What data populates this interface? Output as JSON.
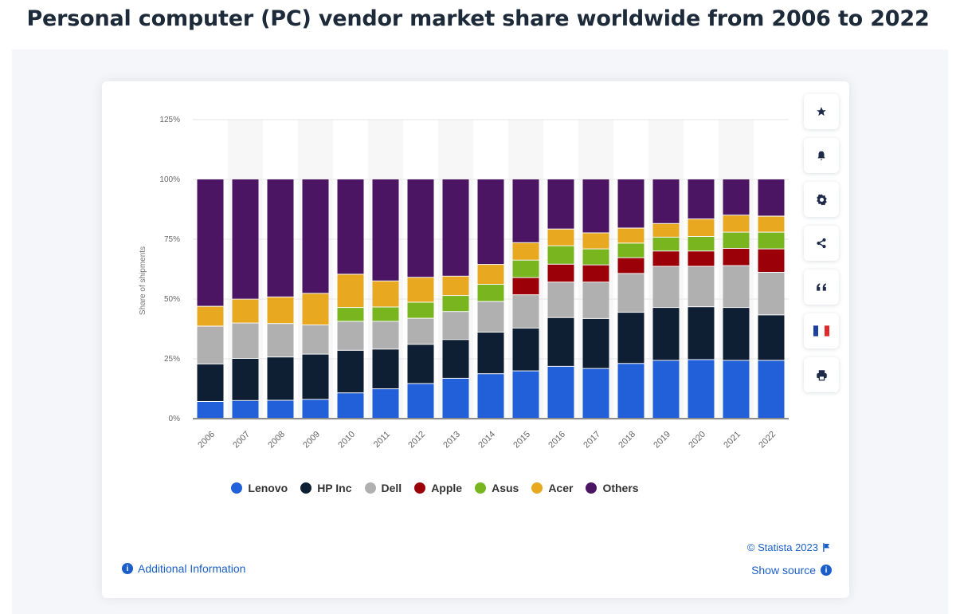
{
  "page": {
    "title": "Personal computer (PC) vendor market share worldwide from 2006 to 2022"
  },
  "side_toolbar": [
    {
      "name": "favorite-button",
      "icon": "star-icon"
    },
    {
      "name": "notification-button",
      "icon": "bell-icon"
    },
    {
      "name": "settings-button",
      "icon": "gear-icon"
    },
    {
      "name": "share-button",
      "icon": "share-icon"
    },
    {
      "name": "cite-button",
      "icon": "quote-icon"
    },
    {
      "name": "language-button",
      "icon": "french-flag-icon"
    },
    {
      "name": "print-button",
      "icon": "printer-icon"
    }
  ],
  "footer": {
    "additional_info": "Additional Information",
    "copyright": "© Statista 2023",
    "show_source": "Show source",
    "info_glyph": "i"
  },
  "colors": {
    "Lenovo": "#2160d8",
    "HP Inc": "#0f1f33",
    "Dell": "#b0b0b0",
    "Apple": "#9b0008",
    "Asus": "#78b51e",
    "Acer": "#e8a820",
    "Others": "#4b1563",
    "link": "#1a5fc9"
  },
  "chart_data": {
    "type": "bar",
    "stacked": true,
    "title": "Personal computer (PC) vendor market share worldwide from 2006 to 2022",
    "xlabel": "",
    "ylabel": "Share of shipments",
    "ylim": [
      0,
      125
    ],
    "yticks": [
      "0%",
      "25%",
      "50%",
      "75%",
      "100%",
      "125%"
    ],
    "ytick_values": [
      0,
      25,
      50,
      75,
      100,
      125
    ],
    "grid": true,
    "legend_position": "bottom",
    "categories": [
      "2006",
      "2007",
      "2008",
      "2009",
      "2010",
      "2011",
      "2012",
      "2013",
      "2014",
      "2015",
      "2016",
      "2017",
      "2018",
      "2019",
      "2020",
      "2021",
      "2022"
    ],
    "series": [
      {
        "name": "Lenovo",
        "values": [
          7.0,
          7.4,
          7.5,
          7.9,
          10.6,
          12.3,
          14.5,
          16.7,
          18.6,
          19.8,
          21.7,
          20.8,
          22.9,
          24.2,
          24.5,
          24.2,
          24.2
        ]
      },
      {
        "name": "HP Inc",
        "values": [
          15.7,
          17.6,
          18.1,
          18.9,
          17.8,
          16.6,
          16.4,
          16.2,
          17.4,
          17.9,
          20.4,
          20.9,
          21.4,
          22.1,
          22.1,
          22.1,
          19.0
        ]
      },
      {
        "name": "Dell",
        "values": [
          15.8,
          14.8,
          14.0,
          12.2,
          12.1,
          11.6,
          10.9,
          11.7,
          12.8,
          13.9,
          14.8,
          15.2,
          16.2,
          17.2,
          16.9,
          17.5,
          17.8
        ]
      },
      {
        "name": "Apple",
        "values": [
          0,
          0,
          0,
          0,
          0,
          0,
          0,
          0,
          0,
          7.2,
          7.5,
          7.2,
          6.6,
          6.4,
          6.4,
          7.2,
          9.8
        ]
      },
      {
        "name": "Asus",
        "values": [
          0,
          0,
          0,
          0,
          5.8,
          6.0,
          6.7,
          6.7,
          7.2,
          7.3,
          7.7,
          6.7,
          6.1,
          5.8,
          6.1,
          6.8,
          7.0
        ]
      },
      {
        "name": "Acer",
        "values": [
          8.3,
          10.0,
          11.1,
          13.2,
          13.9,
          10.9,
          10.4,
          8.1,
          8.3,
          7.3,
          7.0,
          6.7,
          6.3,
          5.7,
          7.3,
          7.1,
          6.7
        ]
      },
      {
        "name": "Others",
        "values": [
          53.2,
          50.2,
          49.3,
          47.8,
          39.8,
          42.6,
          41.1,
          40.6,
          35.7,
          26.6,
          20.9,
          22.5,
          20.5,
          18.6,
          16.7,
          15.1,
          15.5
        ]
      }
    ]
  }
}
